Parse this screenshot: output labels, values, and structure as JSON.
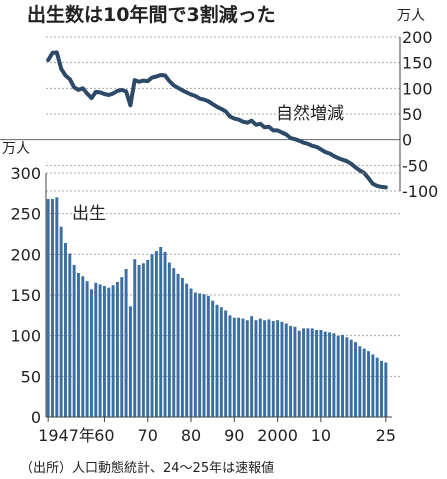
{
  "chart_data": {
    "title": "出生数は10年間で3割減った",
    "source": "（出所）人口動態統計、24～25年は速報値",
    "top_panel": {
      "type": "line",
      "series_name": "自然増減",
      "unit": "万人",
      "ylim": [
        -100,
        200
      ],
      "yticks": [
        200,
        150,
        100,
        50,
        0,
        -50,
        -100
      ],
      "ytick_labels": [
        "200",
        "150",
        "100",
        "50",
        "0",
        "-50",
        "-100"
      ],
      "color": "#2c4a68",
      "x": [
        1947,
        1948,
        1949,
        1950,
        1951,
        1952,
        1953,
        1954,
        1955,
        1956,
        1957,
        1958,
        1959,
        1960,
        1961,
        1962,
        1963,
        1964,
        1965,
        1966,
        1967,
        1968,
        1969,
        1970,
        1971,
        1972,
        1973,
        1974,
        1975,
        1976,
        1977,
        1978,
        1979,
        1980,
        1981,
        1982,
        1983,
        1984,
        1985,
        1986,
        1987,
        1988,
        1989,
        1990,
        1991,
        1992,
        1993,
        1994,
        1995,
        1996,
        1997,
        1998,
        1999,
        2000,
        2001,
        2002,
        2003,
        2004,
        2005,
        2006,
        2007,
        2008,
        2009,
        2010,
        2011,
        2012,
        2013,
        2014,
        2015,
        2016,
        2017,
        2018,
        2019,
        2020,
        2021,
        2022,
        2023,
        2024,
        2025
      ],
      "values": [
        155,
        169,
        170,
        138,
        125,
        118,
        102,
        97,
        100,
        90,
        81,
        93,
        92,
        89,
        87,
        90,
        95,
        97,
        94,
        67,
        116,
        113,
        115,
        114,
        121,
        123,
        126,
        125,
        114,
        106,
        101,
        96,
        92,
        88,
        85,
        80,
        78,
        75,
        69,
        64,
        60,
        55,
        45,
        41,
        39,
        35,
        33,
        37,
        29,
        31,
        24,
        25,
        18,
        18,
        14,
        10,
        3,
        1,
        -2,
        -6,
        -8,
        -12,
        -14,
        -19,
        -24,
        -27,
        -32,
        -36,
        -39,
        -42,
        -47,
        -54,
        -60,
        -65,
        -75,
        -86,
        -90,
        -92,
        -93
      ]
    },
    "bottom_panel": {
      "type": "bar",
      "series_name": "出生",
      "unit": "万人",
      "ylim": [
        0,
        300
      ],
      "yticks": [
        300,
        250,
        200,
        150,
        100,
        50,
        0
      ],
      "ytick_labels": [
        "300",
        "250",
        "200",
        "150",
        "100",
        "50",
        "0"
      ],
      "color": "#3b6fa3",
      "x": [
        1947,
        1948,
        1949,
        1950,
        1951,
        1952,
        1953,
        1954,
        1955,
        1956,
        1957,
        1958,
        1959,
        1960,
        1961,
        1962,
        1963,
        1964,
        1965,
        1966,
        1967,
        1968,
        1969,
        1970,
        1971,
        1972,
        1973,
        1974,
        1975,
        1976,
        1977,
        1978,
        1979,
        1980,
        1981,
        1982,
        1983,
        1984,
        1985,
        1986,
        1987,
        1988,
        1989,
        1990,
        1991,
        1992,
        1993,
        1994,
        1995,
        1996,
        1997,
        1998,
        1999,
        2000,
        2001,
        2002,
        2003,
        2004,
        2005,
        2006,
        2007,
        2008,
        2009,
        2010,
        2011,
        2012,
        2013,
        2014,
        2015,
        2016,
        2017,
        2018,
        2019,
        2020,
        2021,
        2022,
        2023,
        2024,
        2025
      ],
      "values": [
        268,
        268,
        270,
        234,
        214,
        201,
        187,
        177,
        173,
        167,
        157,
        165,
        163,
        161,
        159,
        162,
        166,
        172,
        182,
        136,
        194,
        187,
        189,
        193,
        200,
        204,
        209,
        203,
        190,
        183,
        176,
        171,
        164,
        158,
        153,
        152,
        151,
        149,
        143,
        138,
        135,
        131,
        125,
        122,
        122,
        121,
        119,
        124,
        119,
        121,
        119,
        120,
        118,
        119,
        117,
        115,
        112,
        111,
        106,
        109,
        109,
        109,
        107,
        107,
        105,
        104,
        103,
        100,
        101,
        98,
        95,
        92,
        87,
        84,
        81,
        77,
        73,
        69,
        67
      ],
      "xtick_labels": [
        {
          "year": 1947,
          "label": "1947年"
        },
        {
          "year": 1960,
          "label": "60"
        },
        {
          "year": 1970,
          "label": "70"
        },
        {
          "year": 1980,
          "label": "80"
        },
        {
          "year": 1990,
          "label": "90"
        },
        {
          "year": 2000,
          "label": "2000"
        },
        {
          "year": 2010,
          "label": "10"
        },
        {
          "year": 2025,
          "label": "25"
        }
      ]
    }
  }
}
